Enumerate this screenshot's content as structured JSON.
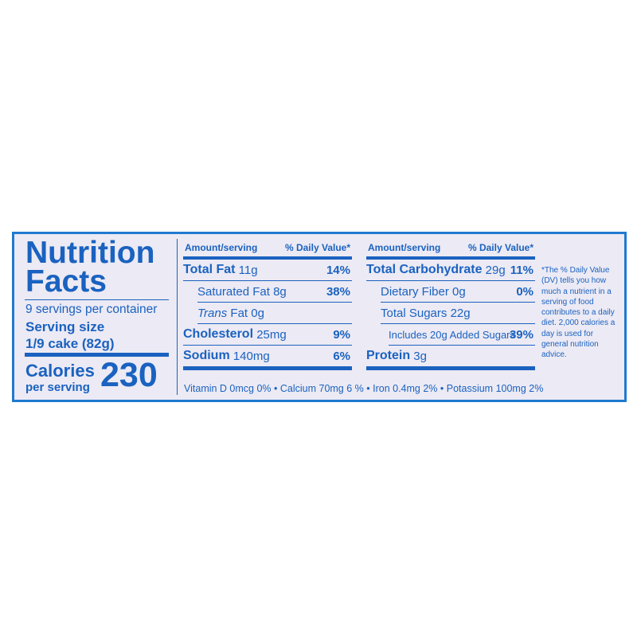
{
  "left": {
    "title_1": "Nutrition",
    "title_2": "Facts",
    "servings": "9 servings per container",
    "serving_size_label": "Serving size",
    "serving_size": "1/9 cake (82g)",
    "calories_label": "Calories",
    "per_serving": "per serving",
    "calories": "230"
  },
  "columns": [
    {
      "header_amount": "Amount/serving",
      "header_dv": "% Daily Value*",
      "rows": [
        {
          "name": "Total Fat",
          "amount": "11g",
          "dv": "14%"
        },
        {
          "name": "Saturated Fat",
          "amount": "8g",
          "dv": "38%"
        },
        {
          "name_italic": "Trans",
          "name": "Fat",
          "amount": "0g"
        },
        {
          "name": "Cholesterol",
          "amount": "25mg",
          "dv": "9%"
        },
        {
          "name": "Sodium",
          "amount": "140mg",
          "dv": "6%"
        }
      ]
    },
    {
      "header_amount": "Amount/serving",
      "header_dv": "% Daily Value*",
      "rows": [
        {
          "name": "Total Carbohydrate",
          "amount": "29g",
          "dv": "11%"
        },
        {
          "name": "Dietary Fiber",
          "amount": "0g",
          "dv": "0%"
        },
        {
          "name": "Total Sugars",
          "amount": "22g"
        },
        {
          "name": "Includes 20g Added Sugars",
          "dv": "39%"
        },
        {
          "name": "Protein",
          "amount": "3g"
        }
      ]
    }
  ],
  "vitamins": [
    "Vitamin D 0mcg 0%",
    "Calcium 70mg 6 %",
    "Iron 0.4mg 2%",
    "Potassium 100mg 2%"
  ],
  "footnote": "*The % Daily Value (DV) tells you how much a nutrient in a serving of food contributes to a daily diet. 2,000 calories a day is used for general nutrition advice."
}
